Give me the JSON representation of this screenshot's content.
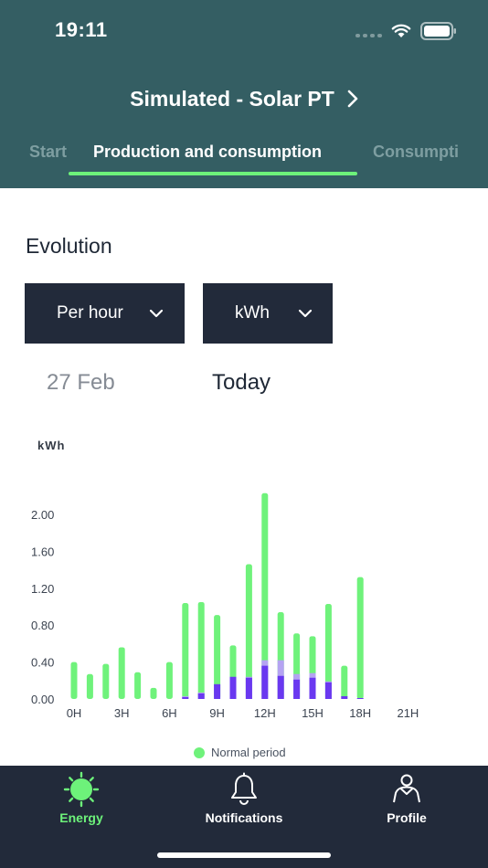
{
  "status_bar": {
    "time": "19:11"
  },
  "header": {
    "title": "Simulated - Solar PT"
  },
  "tabs": [
    {
      "label": "Start"
    },
    {
      "label": "Production and consumption"
    },
    {
      "label": "Consumpti"
    }
  ],
  "section": {
    "title": "Evolution"
  },
  "filters": {
    "period": "Per hour",
    "unit": "kWh"
  },
  "dates": {
    "previous": "27 Feb",
    "current": "Today"
  },
  "colors": {
    "header": "#345e63",
    "accent": "#6df27a",
    "dark": "#222a3a",
    "series_green": "#6ff27b",
    "series_purple": "#6a38f0",
    "series_lavender": "#b5a3f2"
  },
  "chart_data": {
    "type": "bar",
    "stacked": true,
    "ylabel": "kWh",
    "yticks": [
      "0.00",
      "0.40",
      "0.80",
      "1.20",
      "1.60",
      "2.00"
    ],
    "ylim": [
      0,
      2.2
    ],
    "xticks": [
      "0H",
      "3H",
      "6H",
      "9H",
      "12H",
      "15H",
      "18H",
      "21H"
    ],
    "categories": [
      "0",
      "1",
      "2",
      "3",
      "4",
      "5",
      "6",
      "7",
      "8",
      "9",
      "10",
      "11",
      "12",
      "13",
      "14",
      "15",
      "16",
      "17",
      "18"
    ],
    "series": [
      {
        "name": "Normal period",
        "color": "#6ff27b",
        "values": [
          0.4,
          0.27,
          0.38,
          0.56,
          0.29,
          0.12,
          0.4,
          1.01,
          0.98,
          0.75,
          0.34,
          1.22,
          1.81,
          0.52,
          0.44,
          0.4,
          0.84,
          0.33,
          1.31
        ]
      },
      {
        "color": "#b5a3f2",
        "values": [
          0,
          0,
          0,
          0,
          0,
          0,
          0,
          0.01,
          0.01,
          0,
          0,
          0.01,
          0.06,
          0.17,
          0.06,
          0.05,
          0.01,
          0,
          0
        ]
      },
      {
        "color": "#6a38f0",
        "values": [
          0,
          0,
          0,
          0,
          0,
          0,
          0,
          0.02,
          0.06,
          0.16,
          0.24,
          0.23,
          0.36,
          0.25,
          0.21,
          0.23,
          0.18,
          0.03,
          0.01
        ]
      }
    ],
    "legend": [
      "Normal period"
    ],
    "legend_position": "bottom"
  },
  "bottom_nav": [
    {
      "label": "Energy",
      "icon": "sun-icon"
    },
    {
      "label": "Notifications",
      "icon": "bell-icon"
    },
    {
      "label": "Profile",
      "icon": "user-icon"
    }
  ]
}
